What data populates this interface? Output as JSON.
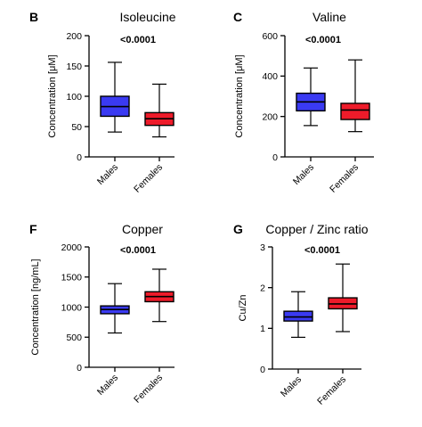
{
  "colors": {
    "males": "#3a3af2",
    "females": "#ee1b2a",
    "axis": "#000000"
  },
  "chart_data": [
    {
      "type": "box",
      "panel": "B",
      "title": "Isoleucine",
      "annotation": "<0.0001",
      "ylabel": "Concentration [μM]",
      "ylim": [
        0,
        200
      ],
      "yticks": [
        0,
        50,
        100,
        150,
        200
      ],
      "categories": [
        "Males",
        "Females"
      ],
      "series": [
        {
          "name": "Males",
          "min": 41,
          "q1": 67,
          "median": 83,
          "q3": 100,
          "max": 156
        },
        {
          "name": "Females",
          "min": 33,
          "q1": 52,
          "median": 63,
          "q3": 73,
          "max": 120
        }
      ]
    },
    {
      "type": "box",
      "panel": "C",
      "title": "Valine",
      "annotation": "<0.0001",
      "ylabel": "Concentration [μM]",
      "ylim": [
        0,
        600
      ],
      "yticks": [
        0,
        200,
        400,
        600
      ],
      "categories": [
        "Males",
        "Females"
      ],
      "series": [
        {
          "name": "Males",
          "min": 155,
          "q1": 228,
          "median": 272,
          "q3": 315,
          "max": 440
        },
        {
          "name": "Females",
          "min": 125,
          "q1": 185,
          "median": 232,
          "q3": 265,
          "max": 480
        }
      ]
    },
    {
      "type": "box",
      "panel": "F",
      "title": "Copper",
      "annotation": "<0.0001",
      "ylabel": "Concentration [ng/mL]",
      "ylim": [
        0,
        2000
      ],
      "yticks": [
        0,
        500,
        1000,
        1500,
        2000
      ],
      "categories": [
        "Males",
        "Females"
      ],
      "series": [
        {
          "name": "Males",
          "min": 570,
          "q1": 890,
          "median": 960,
          "q3": 1020,
          "max": 1390
        },
        {
          "name": "Females",
          "min": 760,
          "q1": 1090,
          "median": 1175,
          "q3": 1255,
          "max": 1630
        }
      ]
    },
    {
      "type": "box",
      "panel": "G",
      "title": "Copper / Zinc ratio",
      "annotation": "<0.0001",
      "ylabel": "Cu/Zn",
      "ylim": [
        0,
        3
      ],
      "yticks": [
        0,
        1,
        2,
        3
      ],
      "categories": [
        "Males",
        "Females"
      ],
      "series": [
        {
          "name": "Males",
          "min": 0.78,
          "q1": 1.18,
          "median": 1.28,
          "q3": 1.42,
          "max": 1.9
        },
        {
          "name": "Females",
          "min": 0.92,
          "q1": 1.48,
          "median": 1.6,
          "q3": 1.75,
          "max": 2.58
        }
      ]
    }
  ]
}
